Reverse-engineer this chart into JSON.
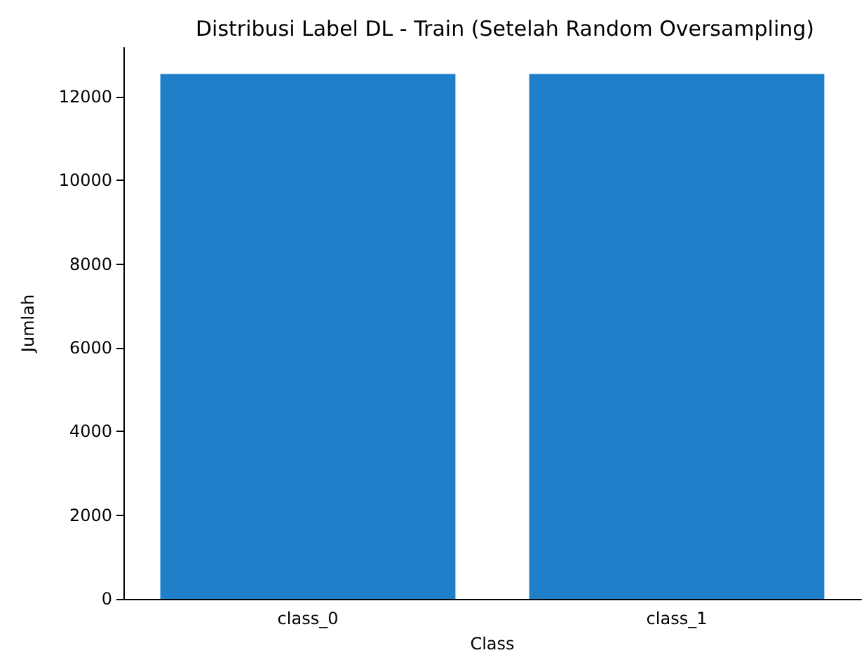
{
  "chart_data": {
    "type": "bar",
    "title": "Distribusi Label DL - Train (Setelah Random Oversampling)",
    "xlabel": "Class",
    "ylabel": "Jumlah",
    "categories": [
      "class_0",
      "class_1"
    ],
    "values": [
      12540,
      12540
    ],
    "color": "#1f7fc8",
    "ylim": [
      0,
      13170
    ],
    "yticks": [
      0,
      2000,
      4000,
      6000,
      8000,
      10000,
      12000
    ],
    "grid": false
  }
}
